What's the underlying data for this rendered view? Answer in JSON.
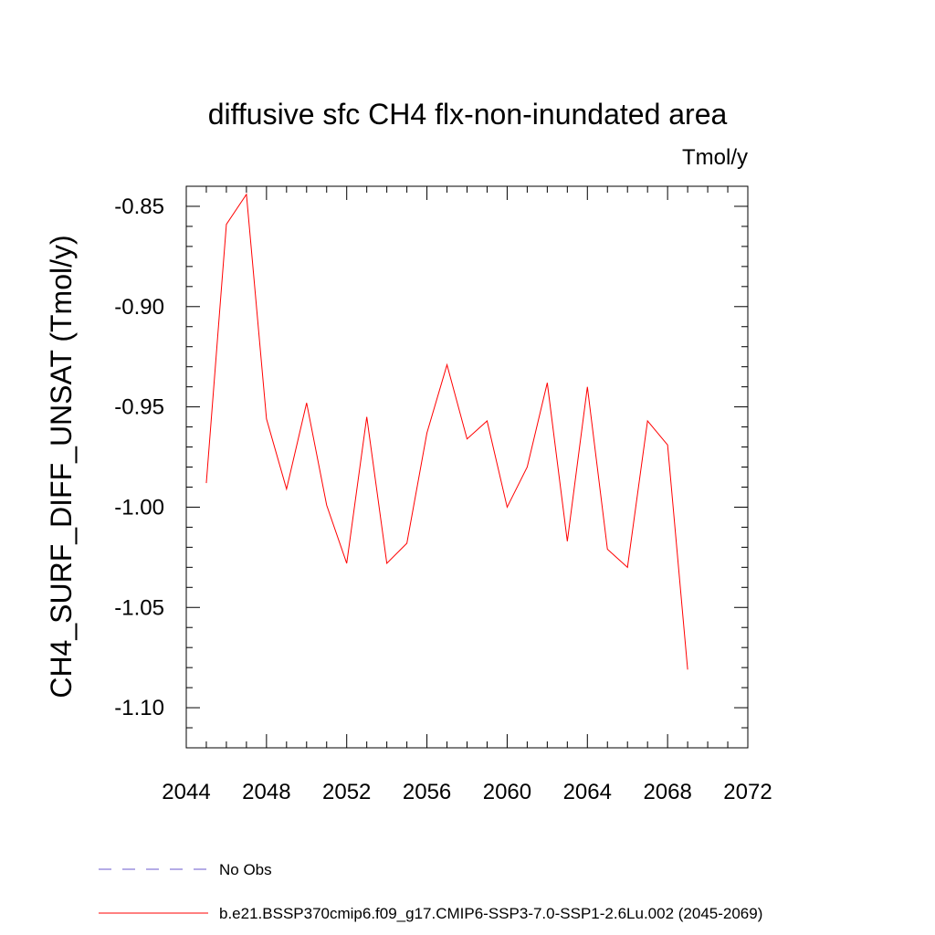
{
  "chart_data": {
    "type": "line",
    "title": "diffusive sfc CH4 flx-non-inundated area",
    "units": "Tmol/y",
    "ylabel": "CH4_SURF_DIFF_UNSAT  (Tmol/y)",
    "xlabel": "",
    "xlim": [
      2044,
      2072
    ],
    "ylim": [
      -1.12,
      -0.84
    ],
    "x_ticks": [
      "2044",
      "2048",
      "2052",
      "2056",
      "2060",
      "2064",
      "2068",
      "2072"
    ],
    "y_ticks": [
      "-0.85",
      "-0.90",
      "-0.95",
      "-1.00",
      "-1.05",
      "-1.10"
    ],
    "grid": false,
    "x": [
      2045,
      2046,
      2047,
      2048,
      2049,
      2050,
      2051,
      2052,
      2053,
      2054,
      2055,
      2056,
      2057,
      2058,
      2059,
      2060,
      2061,
      2062,
      2063,
      2064,
      2065,
      2066,
      2067,
      2068,
      2069
    ],
    "series": [
      {
        "name": "b.e21.BSSP370cmip6.f09_g17.CMIP6-SSP3-7.0-SSP1-2.6Lu.002 (2045-2069)",
        "color": "#ff0000",
        "values": [
          -0.988,
          -0.859,
          -0.844,
          -0.956,
          -0.991,
          -0.948,
          -0.999,
          -1.028,
          -0.955,
          -1.028,
          -1.018,
          -0.963,
          -0.929,
          -0.966,
          -0.957,
          -1.0,
          -0.98,
          -0.938,
          -1.017,
          -0.94,
          -1.021,
          -1.03,
          -0.957,
          -0.969,
          -1.081
        ]
      }
    ],
    "legend": {
      "placement": "bottom",
      "items": [
        {
          "label": "No Obs",
          "style": "dashed",
          "color": "#6a5acd"
        },
        {
          "label": "b.e21.BSSP370cmip6.f09_g17.CMIP6-SSP3-7.0-SSP1-2.6Lu.002 (2045-2069)",
          "style": "solid",
          "color": "#ff0000"
        }
      ]
    }
  }
}
